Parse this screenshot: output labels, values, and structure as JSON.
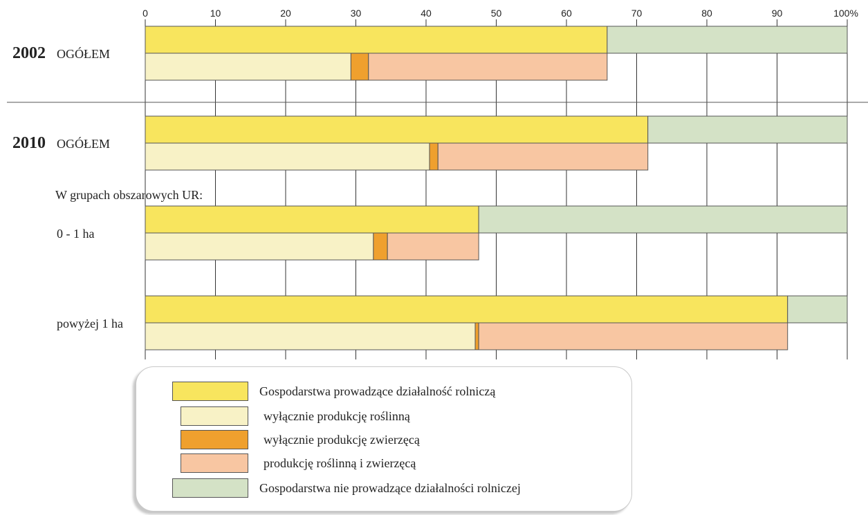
{
  "colors": {
    "agri": "#f8e55e",
    "crop_only": "#f8f2c6",
    "animal_only": "#efa02e",
    "mixed": "#f8c6a2",
    "non_agri": "#d4e2c6",
    "gridline": "#333333",
    "separator": "#555555"
  },
  "chart_data": {
    "type": "bar",
    "orientation": "horizontal",
    "stacked": true,
    "xlim": [
      0,
      100
    ],
    "x_ticks": [
      "0",
      "10",
      "20",
      "30",
      "40",
      "50",
      "60",
      "70",
      "80",
      "90",
      "100%"
    ],
    "grid": true,
    "legend_position": "bottom-left",
    "section_label": "W grupach obszarowych UR:",
    "groups": [
      {
        "year": "2002",
        "label": "OGÓŁEM",
        "agri": 65.8,
        "non_agri": 34.2,
        "crop_only": 29.3,
        "animal_only": 2.5,
        "mixed": 34.0
      },
      {
        "year": "2010",
        "label": "OGÓŁEM",
        "agri": 71.6,
        "non_agri": 28.4,
        "crop_only": 40.5,
        "animal_only": 1.2,
        "mixed": 29.9
      },
      {
        "year": "",
        "label": "0 - 1 ha",
        "agri": 47.5,
        "non_agri": 52.5,
        "crop_only": 32.5,
        "animal_only": 2.0,
        "mixed": 13.0
      },
      {
        "year": "",
        "label": "powyżej 1 ha",
        "agri": 91.5,
        "non_agri": 8.5,
        "crop_only": 47.0,
        "animal_only": 0.5,
        "mixed": 44.0
      }
    ],
    "series": [
      {
        "key": "agri",
        "name": "Gospodarstwa prowadzące działalność rolniczą"
      },
      {
        "key": "crop_only",
        "name": "wyłącznie produkcję roślinną"
      },
      {
        "key": "animal_only",
        "name": "wyłącznie produkcję zwierzęcą"
      },
      {
        "key": "mixed",
        "name": "produkcję roślinną i zwierzęcą"
      },
      {
        "key": "non_agri",
        "name": "Gospodarstwa  nie prowadzące działalności rolniczej"
      }
    ]
  }
}
